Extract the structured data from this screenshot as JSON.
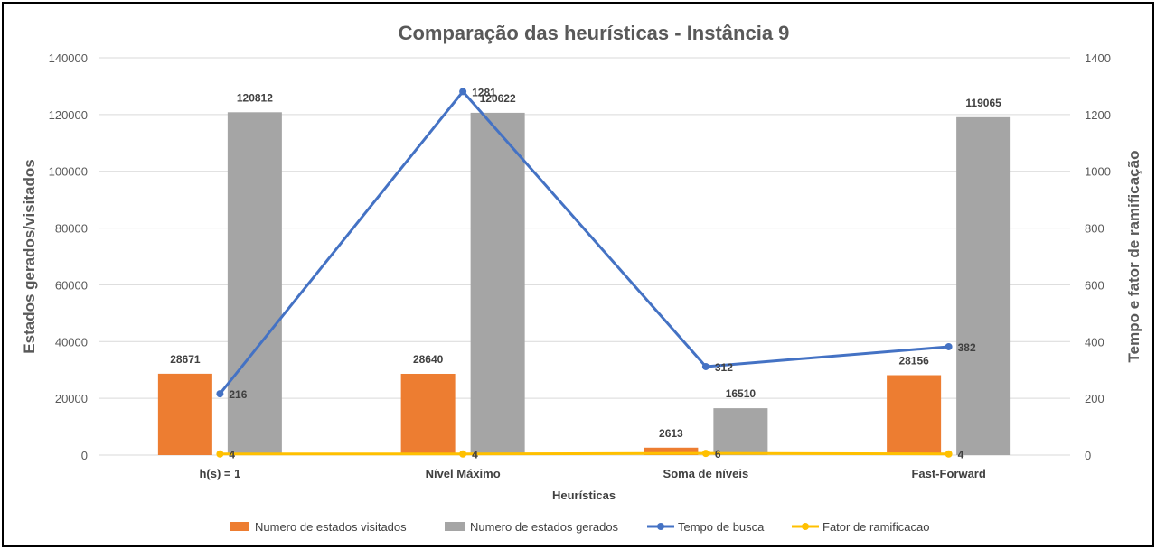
{
  "chart_data": {
    "type": "bar",
    "title": "Comparação das heurísticas - Instância 9",
    "xlabel": "Heurísticas",
    "ylabel": "Estados gerados/visitados",
    "y2label": "Tempo e fator de ramificação",
    "categories": [
      "h(s) = 1",
      "Nível Máximo",
      "Soma de níveis",
      "Fast-Forward"
    ],
    "ylim": [
      0,
      140000
    ],
    "y_ticks": [
      "0",
      "20000",
      "40000",
      "60000",
      "80000",
      "100000",
      "120000",
      "140000"
    ],
    "y2lim": [
      0,
      1400
    ],
    "y2_ticks": [
      "0",
      "200",
      "400",
      "600",
      "800",
      "1000",
      "1200",
      "1400"
    ],
    "grid": true,
    "legend_position": "bottom",
    "series": [
      {
        "name": "Numero de estados visitados",
        "kind": "bar",
        "axis": "left",
        "color": "#ed7d31",
        "values": [
          28671,
          28640,
          2613,
          28156
        ]
      },
      {
        "name": "Numero de estados gerados",
        "kind": "bar",
        "axis": "left",
        "color": "#a5a5a5",
        "values": [
          120812,
          120622,
          16510,
          119065
        ]
      },
      {
        "name": "Tempo de busca",
        "kind": "line",
        "axis": "right",
        "color": "#4472c4",
        "values": [
          216,
          1281,
          312,
          382
        ]
      },
      {
        "name": "Fator de ramificacao",
        "kind": "line",
        "axis": "right",
        "color": "#ffc000",
        "values": [
          4,
          4,
          6,
          4
        ]
      }
    ]
  }
}
